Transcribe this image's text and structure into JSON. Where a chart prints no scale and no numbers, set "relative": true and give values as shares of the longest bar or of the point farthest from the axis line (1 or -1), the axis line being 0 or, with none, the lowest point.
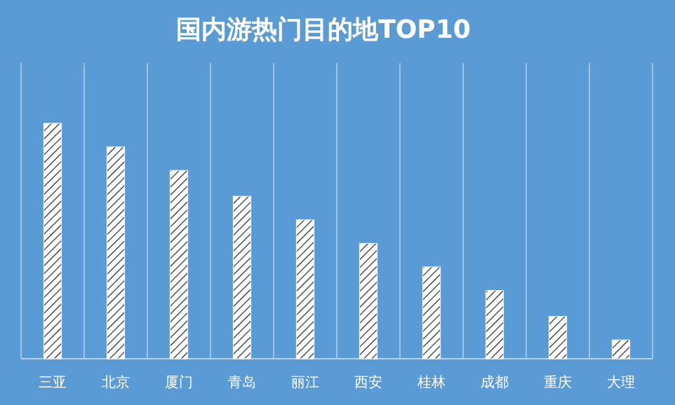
{
  "chart_data": {
    "type": "bar",
    "title": "国内游热门目的地TOP10",
    "categories": [
      "三亚",
      "北京",
      "厦门",
      "青岛",
      "丽江",
      "西安",
      "桂林",
      "成都",
      "重庆",
      "大理"
    ],
    "values": [
      1,
      0.9,
      0.8,
      0.69,
      0.59,
      0.49,
      0.39,
      0.29,
      0.18,
      0.08
    ],
    "color": "#ffffff",
    "relative": true,
    "grid": "x"
  }
}
